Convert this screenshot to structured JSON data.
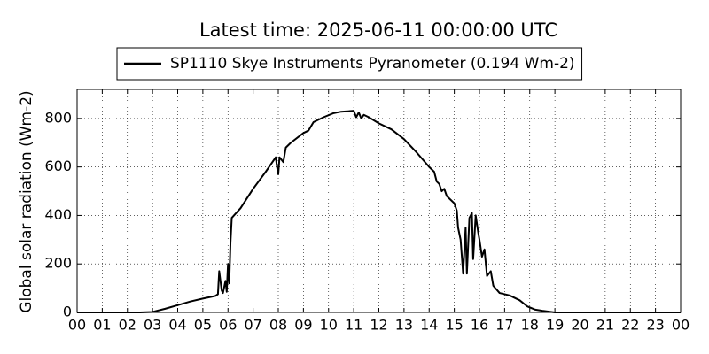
{
  "chart_data": {
    "type": "line",
    "title": "Latest time: 2025-06-11 00:00:00 UTC",
    "ylabel": "Global solar radiation (Wm-2)",
    "x": [
      0,
      2.5,
      3.0,
      3.5,
      4,
      4.5,
      5,
      5.5,
      5.6,
      5.65,
      5.75,
      5.8,
      5.9,
      5.95,
      6.0,
      6.05,
      6.1,
      6.15,
      6.5,
      7,
      7.5,
      7.9,
      7.95,
      8.0,
      8.05,
      8.2,
      8.3,
      8.5,
      9,
      9.2,
      9.4,
      9.8,
      10.2,
      10.5,
      10.8,
      11.0,
      11.1,
      11.2,
      11.3,
      11.4,
      11.6,
      12,
      12.5,
      13,
      13.5,
      14,
      14.2,
      14.3,
      14.4,
      14.5,
      14.6,
      14.7,
      14.8,
      15.0,
      15.1,
      15.15,
      15.25,
      15.35,
      15.45,
      15.5,
      15.6,
      15.7,
      15.75,
      15.85,
      15.95,
      16.0,
      16.1,
      16.2,
      16.3,
      16.45,
      16.55,
      16.8,
      17.2,
      17.6,
      17.9,
      18.2,
      18.5,
      19,
      24
    ],
    "series": [
      {
        "name": "SP1110 Skye Instruments Pyranometer (0.194 Wm-2)",
        "color": "#000000",
        "values": [
          0,
          0,
          2,
          15,
          30,
          45,
          57,
          68,
          75,
          170,
          90,
          80,
          130,
          85,
          200,
          120,
          290,
          390,
          430,
          510,
          580,
          640,
          600,
          570,
          640,
          620,
          680,
          700,
          740,
          750,
          785,
          805,
          822,
          828,
          830,
          832,
          805,
          825,
          800,
          815,
          805,
          780,
          755,
          715,
          660,
          600,
          580,
          540,
          530,
          500,
          510,
          480,
          470,
          450,
          420,
          350,
          300,
          160,
          350,
          160,
          390,
          410,
          220,
          400,
          330,
          300,
          230,
          260,
          150,
          170,
          110,
          80,
          70,
          50,
          25,
          12,
          7,
          0,
          0
        ]
      }
    ],
    "xlim": [
      0,
      24
    ],
    "xticks": [
      {
        "value": 0,
        "label": "00"
      },
      {
        "value": 1,
        "label": "01"
      },
      {
        "value": 2,
        "label": "02"
      },
      {
        "value": 3,
        "label": "03"
      },
      {
        "value": 4,
        "label": "04"
      },
      {
        "value": 5,
        "label": "05"
      },
      {
        "value": 6,
        "label": "06"
      },
      {
        "value": 7,
        "label": "07"
      },
      {
        "value": 8,
        "label": "08"
      },
      {
        "value": 9,
        "label": "09"
      },
      {
        "value": 10,
        "label": "10"
      },
      {
        "value": 11,
        "label": "11"
      },
      {
        "value": 12,
        "label": "12"
      },
      {
        "value": 13,
        "label": "13"
      },
      {
        "value": 14,
        "label": "14"
      },
      {
        "value": 15,
        "label": "15"
      },
      {
        "value": 16,
        "label": "16"
      },
      {
        "value": 17,
        "label": "17"
      },
      {
        "value": 18,
        "label": "18"
      },
      {
        "value": 19,
        "label": "19"
      },
      {
        "value": 20,
        "label": "20"
      },
      {
        "value": 21,
        "label": "21"
      },
      {
        "value": 22,
        "label": "22"
      },
      {
        "value": 23,
        "label": "23"
      },
      {
        "value": 24,
        "label": "00"
      }
    ],
    "ylim": [
      0,
      920
    ],
    "yticks": [
      0,
      200,
      400,
      600,
      800
    ],
    "grid": true
  }
}
